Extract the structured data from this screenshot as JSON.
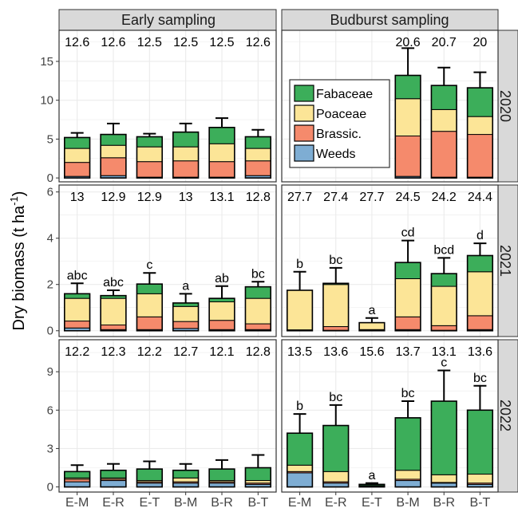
{
  "chart_data": {
    "type": "bar",
    "stacked": true,
    "ylabel": "Dry biomass (t ha",
    "ylabel_sup": "-1",
    "ylabel_close": ")",
    "categories": [
      "E-M",
      "E-R",
      "E-T",
      "B-M",
      "B-R",
      "B-T"
    ],
    "col_strips": [
      "Early sampling",
      "Budburst sampling"
    ],
    "row_strips": [
      "2020",
      "2021",
      "2022"
    ],
    "components": [
      {
        "name": "Weeds",
        "color": "#7eadd3"
      },
      {
        "name": "Brassic.",
        "color": "#f58a6c"
      },
      {
        "name": "Poaceae",
        "color": "#fce597"
      },
      {
        "name": "Fabaceae",
        "color": "#3cae5a"
      }
    ],
    "legend": {
      "panel": "2020-Budburst",
      "entries": [
        "Fabaceae",
        "Poaceae",
        "Brassic.",
        "Weeds"
      ]
    },
    "rows": [
      {
        "ylim": [
          -0.5,
          19
        ],
        "yticks": [
          0,
          5,
          10,
          15
        ],
        "panels": [
          {
            "totals": [
              "12.6",
              "12.6",
              "12.5",
              "12.5",
              "12.5",
              "12.6"
            ],
            "letters": [
              "",
              "",
              "",
              "",
              "",
              ""
            ],
            "stacks": [
              {
                "weeds": 0.2,
                "brassic": 1.8,
                "poaceae": 1.8,
                "fabaceae": 1.4,
                "err": 5.8
              },
              {
                "weeds": 0.3,
                "brassic": 2.3,
                "poaceae": 1.6,
                "fabaceae": 1.4,
                "err": 7.0
              },
              {
                "weeds": 0.1,
                "brassic": 2.0,
                "poaceae": 1.9,
                "fabaceae": 1.3,
                "err": 5.7
              },
              {
                "weeds": 0.1,
                "brassic": 2.1,
                "poaceae": 1.8,
                "fabaceae": 1.9,
                "err": 7.0
              },
              {
                "weeds": 0.1,
                "brassic": 2.0,
                "poaceae": 2.3,
                "fabaceae": 2.1,
                "err": 7.7
              },
              {
                "weeds": 0.3,
                "brassic": 1.9,
                "poaceae": 1.6,
                "fabaceae": 1.5,
                "err": 6.2
              }
            ]
          },
          {
            "totals": [
              "",
              "",
              "",
              "20.6",
              "20.7",
              "20"
            ],
            "letters": [
              "",
              "",
              "",
              "",
              "",
              ""
            ],
            "stacks": [
              {
                "weeds": 0,
                "brassic": 0,
                "poaceae": 0,
                "fabaceae": 0,
                "err": null
              },
              {
                "weeds": 0,
                "brassic": 0,
                "poaceae": 0,
                "fabaceae": 0,
                "err": null
              },
              {
                "weeds": 0,
                "brassic": 0,
                "poaceae": 0,
                "fabaceae": 0,
                "err": null
              },
              {
                "weeds": 0.2,
                "brassic": 5.2,
                "poaceae": 4.8,
                "fabaceae": 3.0,
                "err": 16.7
              },
              {
                "weeds": 0.1,
                "brassic": 5.9,
                "poaceae": 2.8,
                "fabaceae": 3.1,
                "err": 14.2
              },
              {
                "weeds": 0.1,
                "brassic": 5.5,
                "poaceae": 2.3,
                "fabaceae": 3.7,
                "err": 13.6
              }
            ]
          }
        ]
      },
      {
        "ylim": [
          -0.25,
          6.3
        ],
        "yticks": [
          0,
          2,
          4,
          6
        ],
        "panels": [
          {
            "totals": [
              "13",
              "12.9",
              "12.9",
              "13",
              "13.1",
              "12.8"
            ],
            "letters": [
              "abc",
              "abc",
              "c",
              "a",
              "ab",
              "bc"
            ],
            "stacks": [
              {
                "weeds": 0.12,
                "brassic": 0.3,
                "poaceae": 0.98,
                "fabaceae": 0.2,
                "err": 2.05
              },
              {
                "weeds": 0.05,
                "brassic": 0.2,
                "poaceae": 1.15,
                "fabaceae": 0.12,
                "err": 1.75
              },
              {
                "weeds": 0.05,
                "brassic": 0.55,
                "poaceae": 1.0,
                "fabaceae": 0.42,
                "err": 2.5
              },
              {
                "weeds": 0.1,
                "brassic": 0.3,
                "poaceae": 0.65,
                "fabaceae": 0.15,
                "err": 1.6
              },
              {
                "weeds": 0.05,
                "brassic": 0.4,
                "poaceae": 0.8,
                "fabaceae": 0.15,
                "err": 1.93
              },
              {
                "weeds": 0.05,
                "brassic": 0.25,
                "poaceae": 1.1,
                "fabaceae": 0.5,
                "err": 2.12
              }
            ]
          },
          {
            "totals": [
              "27.7",
              "27.4",
              "27.7",
              "24.5",
              "24.2",
              "24.4"
            ],
            "letters": [
              "b",
              "bc",
              "a",
              "cd",
              "bcd",
              "d"
            ],
            "stacks": [
              {
                "weeds": 0.02,
                "brassic": 0.02,
                "poaceae": 1.71,
                "fabaceae": 0.0,
                "err": 2.55
              },
              {
                "weeds": 0.02,
                "brassic": 0.16,
                "poaceae": 1.82,
                "fabaceae": 0.05,
                "err": 2.72
              },
              {
                "weeds": 0.02,
                "brassic": 0.03,
                "poaceae": 0.3,
                "fabaceae": 0.0,
                "err": 0.55
              },
              {
                "weeds": 0.05,
                "brassic": 0.55,
                "poaceae": 1.65,
                "fabaceae": 0.7,
                "err": 3.9
              },
              {
                "weeds": 0.02,
                "brassic": 0.2,
                "poaceae": 1.7,
                "fabaceae": 0.55,
                "err": 3.15
              },
              {
                "weeds": 0.05,
                "brassic": 0.6,
                "poaceae": 1.9,
                "fabaceae": 0.7,
                "err": 3.78
              }
            ]
          }
        ]
      },
      {
        "ylim": [
          -0.4,
          11.5
        ],
        "yticks": [
          0,
          3,
          6,
          9
        ],
        "panels": [
          {
            "totals": [
              "12.2",
              "12.3",
              "12.2",
              "12.7",
              "12.1",
              "12.8"
            ],
            "letters": [
              "",
              "",
              "",
              "",
              "",
              ""
            ],
            "stacks": [
              {
                "weeds": 0.4,
                "brassic": 0.2,
                "poaceae": 0.1,
                "fabaceae": 0.5,
                "err": 1.7
              },
              {
                "weeds": 0.5,
                "brassic": 0.1,
                "poaceae": 0.1,
                "fabaceae": 0.6,
                "err": 1.8
              },
              {
                "weeds": 0.3,
                "brassic": 0.1,
                "poaceae": 0.1,
                "fabaceae": 0.9,
                "err": 2.0
              },
              {
                "weeds": 0.3,
                "brassic": 0.1,
                "poaceae": 0.3,
                "fabaceae": 0.6,
                "err": 1.8
              },
              {
                "weeds": 0.3,
                "brassic": 0.1,
                "poaceae": 0.1,
                "fabaceae": 0.9,
                "err": 2.1
              },
              {
                "weeds": 0.2,
                "brassic": 0.1,
                "poaceae": 0.2,
                "fabaceae": 1.0,
                "err": 2.5
              }
            ]
          },
          {
            "totals": [
              "13.5",
              "13.6",
              "15.6",
              "13.7",
              "13.1",
              "13.6"
            ],
            "letters": [
              "b",
              "bc",
              "a",
              "bc",
              "c",
              "bc"
            ],
            "stacks": [
              {
                "weeds": 1.1,
                "brassic": 0.1,
                "poaceae": 0.5,
                "fabaceae": 2.5,
                "err": 5.7
              },
              {
                "weeds": 0.3,
                "brassic": 0.1,
                "poaceae": 0.8,
                "fabaceae": 3.6,
                "err": 6.4
              },
              {
                "weeds": 0.05,
                "brassic": 0.0,
                "poaceae": 0.05,
                "fabaceae": 0.1,
                "err": 0.3
              },
              {
                "weeds": 0.5,
                "brassic": 0.1,
                "poaceae": 0.7,
                "fabaceae": 4.1,
                "err": 6.7
              },
              {
                "weeds": 0.3,
                "brassic": 0.05,
                "poaceae": 0.6,
                "fabaceae": 5.75,
                "err": 9.1
              },
              {
                "weeds": 0.2,
                "brassic": 0.1,
                "poaceae": 0.7,
                "fabaceae": 5.0,
                "err": 7.9
              }
            ]
          }
        ]
      }
    ]
  }
}
